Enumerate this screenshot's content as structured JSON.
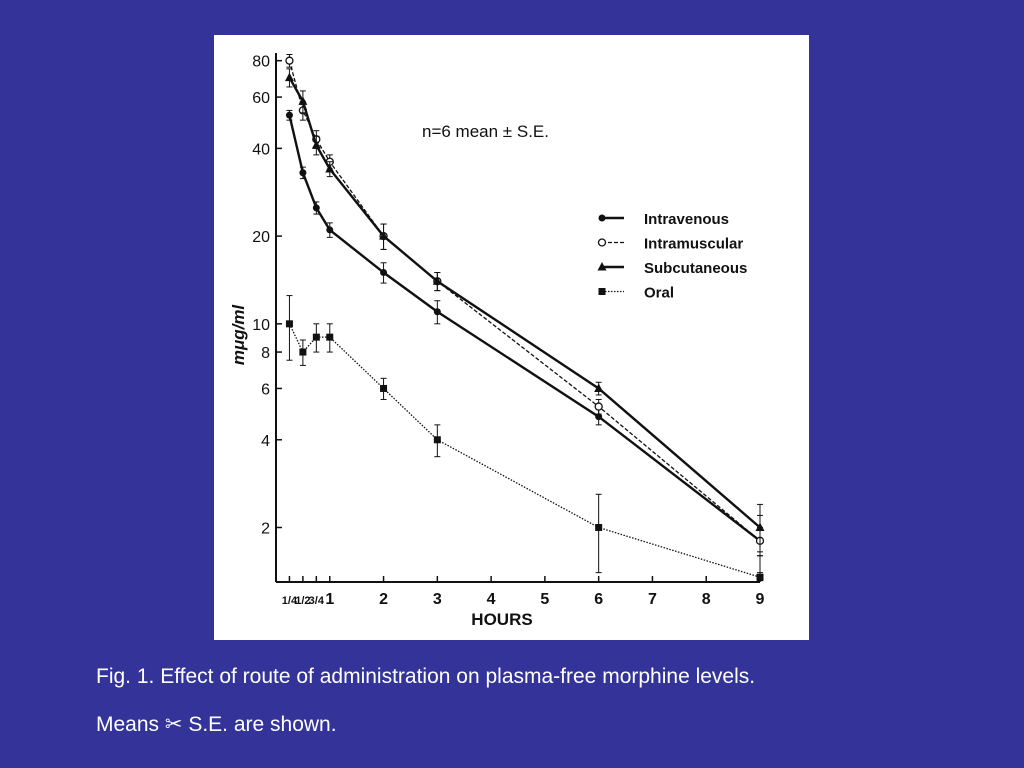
{
  "slide": {
    "background": "#333399",
    "caption_line_1": "Fig. 1.  Effect of route of administration on plasma-free morphine levels.",
    "caption_line_2_prefix": "Means",
    "caption_symbol": "✂",
    "caption_line_2_suffix": "S.E. are shown."
  },
  "chart_data": {
    "type": "line",
    "annotation": "n=6    mean ± S.E.",
    "xlabel": "HOURS",
    "ylabel": "mμg/ml",
    "y_scale": "log",
    "ylim": [
      1.3,
      85
    ],
    "xlim": [
      0,
      9
    ],
    "x_tick_labels": [
      {
        "x": 0.25,
        "label": "1/4"
      },
      {
        "x": 0.5,
        "label": "1/2"
      },
      {
        "x": 0.75,
        "label": "3/4"
      },
      {
        "x": 1,
        "label": "1"
      },
      {
        "x": 2,
        "label": "2"
      },
      {
        "x": 3,
        "label": "3"
      },
      {
        "x": 4,
        "label": "4"
      },
      {
        "x": 5,
        "label": "5"
      },
      {
        "x": 6,
        "label": "6"
      },
      {
        "x": 7,
        "label": "7"
      },
      {
        "x": 8,
        "label": "8"
      },
      {
        "x": 9,
        "label": "9"
      }
    ],
    "y_ticks": [
      2,
      4,
      6,
      8,
      10,
      20,
      40,
      60,
      80
    ],
    "legend_position": "right",
    "grid": false,
    "series": [
      {
        "name": "Intravenous",
        "marker": "filled-circle",
        "line": "solid",
        "x": [
          0.25,
          0.5,
          0.75,
          1,
          2,
          3,
          6,
          9
        ],
        "y": [
          52,
          33,
          25,
          21,
          15,
          11,
          4.8,
          1.8
        ],
        "err": [
          2,
          1.5,
          1.2,
          1.2,
          1.2,
          1,
          0.3,
          0.2
        ]
      },
      {
        "name": "Intramuscular",
        "marker": "open-circle",
        "line": "dashed",
        "x": [
          0.25,
          0.5,
          0.75,
          1,
          2,
          3,
          6,
          9
        ],
        "y": [
          80,
          54,
          43,
          36,
          20,
          14,
          5.2,
          1.8
        ],
        "err": [
          4,
          4,
          3,
          2,
          2,
          1,
          0.3,
          0.4
        ]
      },
      {
        "name": "Subcutaneous",
        "marker": "filled-triangle",
        "line": "solid",
        "x": [
          0.25,
          0.5,
          0.75,
          1,
          2,
          3,
          6,
          9
        ],
        "y": [
          70,
          58,
          41,
          34,
          20,
          14,
          6,
          2
        ],
        "err": [
          5,
          5,
          3,
          2,
          2,
          1,
          0.3,
          0.4
        ]
      },
      {
        "name": "Oral",
        "marker": "filled-square",
        "line": "dotted",
        "x": [
          0.25,
          0.5,
          0.75,
          1,
          2,
          3,
          6,
          9
        ],
        "y": [
          10,
          8,
          9,
          9,
          6,
          4,
          2,
          1.35
        ],
        "err": [
          2.5,
          0.8,
          1,
          1,
          0.5,
          0.5,
          0.6,
          0.3
        ]
      }
    ]
  }
}
